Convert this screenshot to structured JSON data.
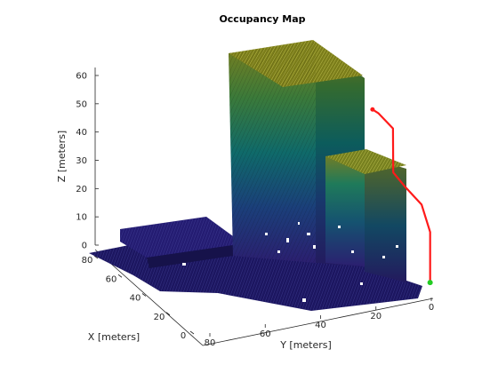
{
  "chart_data": {
    "type": "scatter",
    "plot_kind": "3d-voxel-occupancy",
    "title": "Occupancy Map",
    "xlabel": "X [meters]",
    "ylabel": "Y [meters]",
    "zlabel": "Z [meters]",
    "x_ticks": [
      "0",
      "20",
      "40",
      "60",
      "80"
    ],
    "y_ticks": [
      "0",
      "20",
      "40",
      "60",
      "80"
    ],
    "z_ticks": [
      "0",
      "10",
      "20",
      "30",
      "40",
      "50",
      "60"
    ],
    "xlim": [
      0,
      80
    ],
    "ylim": [
      0,
      80
    ],
    "zlim": [
      0,
      65
    ],
    "colormap": "parula",
    "color_low": "#2a1f6e",
    "color_high": "#8d8a1a",
    "path_color": "#ff1a1a",
    "start_marker_color": "#22cc22",
    "grid": false,
    "path": [
      {
        "x": 10,
        "y": 10,
        "z": 62
      },
      {
        "x": 10,
        "y": 8,
        "z": 61
      },
      {
        "x": 12,
        "y": 1,
        "z": 57
      },
      {
        "x": 14,
        "y": -1,
        "z": 42
      },
      {
        "x": 12,
        "y": -3,
        "z": 37
      },
      {
        "x": 8,
        "y": -5,
        "z": 30
      },
      {
        "x": 6,
        "y": -6,
        "z": 20
      },
      {
        "x": 6,
        "y": -6,
        "z": 10
      },
      {
        "x": 6,
        "y": -6,
        "z": 2
      }
    ]
  }
}
